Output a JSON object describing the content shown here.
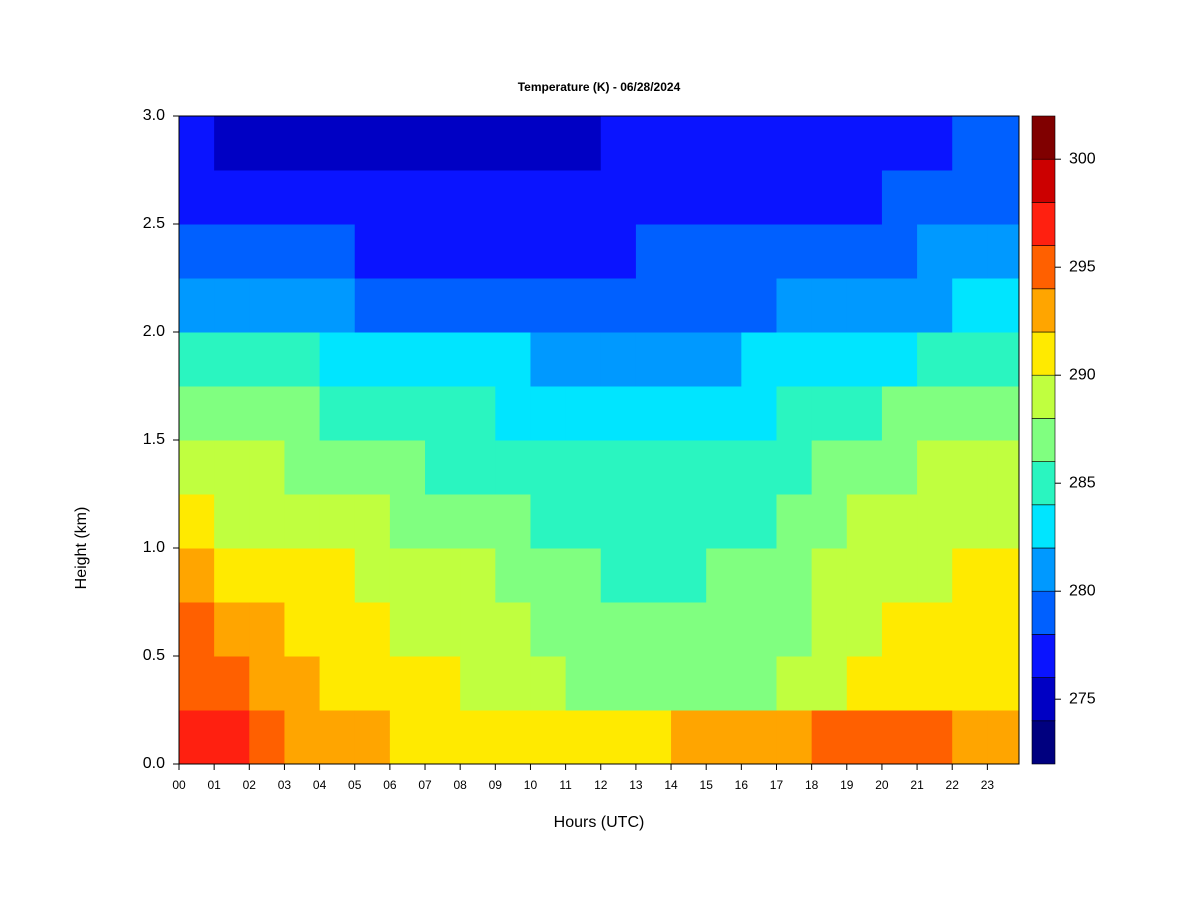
{
  "chart_data": {
    "type": "contour",
    "title": "Temperature (K) - 06/28/2024",
    "xlabel": "Hours (UTC)",
    "ylabel": "Height (km)",
    "xlim": [
      0,
      23.9
    ],
    "ylim": [
      0,
      3
    ],
    "xticks": [
      {
        "value": 0,
        "label": "00"
      },
      {
        "value": 1,
        "label": "01"
      },
      {
        "value": 2,
        "label": "02"
      },
      {
        "value": 3,
        "label": "03"
      },
      {
        "value": 4,
        "label": "04"
      },
      {
        "value": 5,
        "label": "05"
      },
      {
        "value": 6,
        "label": "06"
      },
      {
        "value": 7,
        "label": "07"
      },
      {
        "value": 8,
        "label": "08"
      },
      {
        "value": 9,
        "label": "09"
      },
      {
        "value": 10,
        "label": "10"
      },
      {
        "value": 11,
        "label": "11"
      },
      {
        "value": 12,
        "label": "12"
      },
      {
        "value": 13,
        "label": "13"
      },
      {
        "value": 14,
        "label": "14"
      },
      {
        "value": 15,
        "label": "15"
      },
      {
        "value": 16,
        "label": "16"
      },
      {
        "value": 17,
        "label": "17"
      },
      {
        "value": 18,
        "label": "18"
      },
      {
        "value": 19,
        "label": "19"
      },
      {
        "value": 20,
        "label": "20"
      },
      {
        "value": 21,
        "label": "21"
      },
      {
        "value": 22,
        "label": "22"
      },
      {
        "value": 23,
        "label": "23"
      }
    ],
    "yticks": [
      {
        "value": 0,
        "label": "0.0"
      },
      {
        "value": 0.5,
        "label": "0.5"
      },
      {
        "value": 1,
        "label": "1.0"
      },
      {
        "value": 1.5,
        "label": "1.5"
      },
      {
        "value": 2,
        "label": "2.0"
      },
      {
        "value": 2.5,
        "label": "2.5"
      },
      {
        "value": 3,
        "label": "3.0"
      }
    ],
    "x": [
      0,
      1,
      2,
      3,
      4,
      5,
      6,
      7,
      8,
      9,
      10,
      11,
      12,
      13,
      14,
      15,
      16,
      17,
      18,
      19,
      20,
      21,
      22,
      23
    ],
    "y": [
      0,
      0.25,
      0.5,
      0.75,
      1,
      1.25,
      1.5,
      1.75,
      2,
      2.25,
      2.5,
      2.75
    ],
    "z": [
      [
        297,
        296,
        294,
        293,
        292,
        292,
        291,
        291,
        290.5,
        290,
        290,
        290,
        291,
        291,
        292,
        292,
        293,
        293,
        294,
        295,
        294,
        294,
        292,
        292
      ],
      [
        295,
        294,
        293,
        292,
        291,
        291,
        290.5,
        290,
        289,
        288.5,
        288,
        287,
        287,
        287,
        287,
        287,
        287.5,
        288,
        289,
        290,
        290.5,
        291,
        291,
        291
      ],
      [
        294,
        293,
        292,
        291,
        290.5,
        290,
        289.5,
        289,
        288.5,
        288,
        287,
        286.5,
        286.5,
        286,
        286,
        286.5,
        286.5,
        287,
        288.5,
        289,
        290,
        290.5,
        290.5,
        290.5
      ],
      [
        292,
        291,
        291,
        290.5,
        290,
        289.5,
        289,
        288.5,
        288,
        287,
        286.5,
        286,
        285.5,
        285.5,
        285.5,
        286,
        286,
        287,
        288.5,
        289,
        289.5,
        289.5,
        290,
        290
      ],
      [
        290,
        289.5,
        289,
        289,
        288.5,
        288,
        287.5,
        287,
        286.5,
        286,
        285.5,
        285,
        285,
        285,
        285,
        285,
        285.5,
        286,
        287,
        288,
        288.5,
        289,
        289,
        289
      ],
      [
        288.5,
        288.5,
        288,
        287.5,
        287,
        286.5,
        286,
        285.5,
        285,
        285,
        284.5,
        284.5,
        284,
        284,
        284,
        284,
        284.5,
        285,
        286,
        287,
        287.5,
        288,
        288,
        288.5
      ],
      [
        286.5,
        286.5,
        286,
        286,
        285.5,
        285,
        284.5,
        284,
        284,
        283.5,
        283.5,
        283,
        283,
        283,
        283,
        283,
        283.5,
        284,
        284.5,
        285,
        286,
        286,
        286.5,
        287
      ],
      [
        284.5,
        284.5,
        284,
        284,
        283.5,
        283,
        282.5,
        282.5,
        282,
        282,
        281.5,
        281.5,
        281.5,
        281.5,
        281.5,
        281.5,
        282,
        282.5,
        283,
        283,
        283.5,
        284,
        284.5,
        285
      ],
      [
        281.5,
        281,
        280.5,
        280,
        280,
        279.5,
        279.5,
        279.5,
        279,
        279,
        279,
        279,
        279,
        279,
        279,
        279.5,
        279.5,
        280,
        280,
        280.5,
        281,
        281.5,
        282,
        282.5
      ],
      [
        279.5,
        279,
        278.5,
        278,
        278,
        277.5,
        277.5,
        277.5,
        277.5,
        277.5,
        277.5,
        277.5,
        277.5,
        278,
        278,
        278,
        278,
        278.5,
        278.5,
        279,
        279.5,
        280,
        280.5,
        281
      ],
      [
        277.5,
        277,
        276.5,
        276,
        276,
        276,
        276,
        276,
        276,
        276.5,
        276.5,
        276.5,
        276.5,
        277,
        277,
        277,
        277,
        277,
        277,
        277.5,
        278,
        278.5,
        279,
        279.5
      ],
      [
        276,
        275.5,
        275,
        274.5,
        274.5,
        274.5,
        275,
        275,
        275,
        275,
        275.5,
        275.5,
        276,
        276,
        276,
        276,
        276,
        276,
        276,
        276.5,
        277,
        277.5,
        278,
        278.5
      ]
    ],
    "levels": [
      272,
      274,
      276,
      278,
      280,
      282,
      284,
      286,
      288,
      290,
      292,
      294,
      296,
      298,
      300,
      302
    ],
    "colors": [
      "#00007f",
      "#0000c4",
      "#0a14ff",
      "#0060ff",
      "#0099ff",
      "#00e5ff",
      "#2af5c0",
      "#80ff80",
      "#c0ff3f",
      "#ffea00",
      "#ffa500",
      "#ff6000",
      "#ff2010",
      "#cc0000",
      "#800000"
    ],
    "colorbar_ticks": [
      275,
      280,
      285,
      290,
      295,
      300
    ]
  }
}
